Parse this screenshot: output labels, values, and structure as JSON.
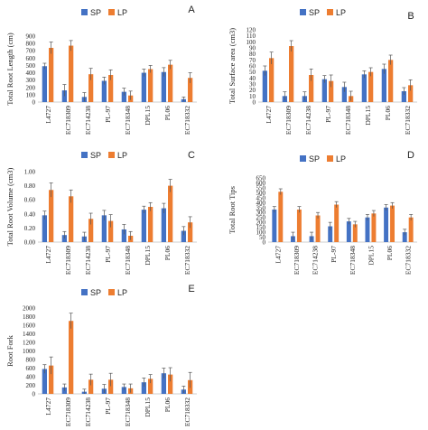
{
  "colors": {
    "SP": "#4472C4",
    "LP": "#ED7D31",
    "axis": "#BFBFBF",
    "error": "#555555"
  },
  "chart_data": [
    {
      "type": "bar",
      "panel": "A",
      "ylabel": "Total Root Length (cm)",
      "ylim": [
        0,
        900
      ],
      "yticks": [
        "0",
        "100",
        "200",
        "300",
        "400",
        "500",
        "600",
        "700",
        "800",
        "900"
      ],
      "yticks_values": [
        0,
        100,
        200,
        300,
        400,
        500,
        600,
        700,
        800,
        900
      ],
      "categories": [
        "L4727",
        "EC718309",
        "EC714238",
        "PL-97",
        "EC718348",
        "DPL15",
        "PL06",
        "EC718332"
      ],
      "series": [
        {
          "name": "SP",
          "values": [
            490,
            160,
            70,
            290,
            140,
            400,
            410,
            40
          ],
          "errors": [
            40,
            80,
            60,
            50,
            50,
            50,
            60,
            30
          ]
        },
        {
          "name": "LP",
          "values": [
            740,
            770,
            380,
            370,
            90,
            450,
            510,
            330
          ],
          "errors": [
            80,
            70,
            80,
            70,
            60,
            50,
            60,
            70
          ]
        }
      ],
      "legend": [
        "SP",
        "LP"
      ],
      "legend_position": "top"
    },
    {
      "type": "bar",
      "panel": "B",
      "ylabel": "Total Surface area (cm3)",
      "ylim": [
        0,
        120
      ],
      "yticks": [
        "0",
        "10",
        "20",
        "30",
        "40",
        "50",
        "60",
        "70",
        "80",
        "90",
        "100",
        "110",
        "120"
      ],
      "yticks_values": [
        0,
        10,
        20,
        30,
        40,
        50,
        60,
        70,
        80,
        90,
        100,
        110,
        120
      ],
      "categories": [
        "L4727",
        "EC718309",
        "EC714238",
        "PL-97",
        "EC718348",
        "DPL15",
        "PL06",
        "EC718332"
      ],
      "series": [
        {
          "name": "SP",
          "values": [
            52,
            10,
            10,
            38,
            25,
            46,
            55,
            18
          ],
          "errors": [
            8,
            7,
            7,
            6,
            8,
            6,
            8,
            6
          ]
        },
        {
          "name": "LP",
          "values": [
            73,
            93,
            45,
            35,
            10,
            50,
            70,
            28
          ],
          "errors": [
            10,
            9,
            10,
            10,
            8,
            7,
            8,
            9
          ]
        }
      ],
      "legend": [
        "SP",
        "LP"
      ],
      "legend_position": "top"
    },
    {
      "type": "bar",
      "panel": "C",
      "ylabel": "Total Root Volume (cm3)",
      "ylim": [
        0,
        1.0
      ],
      "yticks": [
        "0.00",
        "0.20",
        "0.40",
        "0.60",
        "0.80",
        "1.00"
      ],
      "yticks_values": [
        0,
        0.2,
        0.4,
        0.6,
        0.8,
        1.0
      ],
      "categories": [
        "L4727",
        "EC718309",
        "EC714238",
        "PL-97",
        "EC718348",
        "DPL15",
        "PL06",
        "EC718332"
      ],
      "series": [
        {
          "name": "SP",
          "values": [
            0.38,
            0.1,
            0.08,
            0.38,
            0.18,
            0.46,
            0.48,
            0.16
          ],
          "errors": [
            0.06,
            0.05,
            0.06,
            0.07,
            0.07,
            0.05,
            0.07,
            0.06
          ]
        },
        {
          "name": "LP",
          "values": [
            0.74,
            0.65,
            0.33,
            0.3,
            0.09,
            0.5,
            0.8,
            0.28
          ],
          "errors": [
            0.1,
            0.09,
            0.08,
            0.09,
            0.06,
            0.06,
            0.09,
            0.08
          ]
        }
      ],
      "legend": [
        "SP",
        "LP"
      ],
      "legend_position": "top"
    },
    {
      "type": "bar",
      "panel": "D",
      "ylabel": "Total Root Tips",
      "ylim": [
        0,
        650
      ],
      "yticks": [
        "0",
        "50",
        "100",
        "150",
        "200",
        "250",
        "300",
        "350",
        "400",
        "450",
        "500",
        "550",
        "600",
        "650"
      ],
      "yticks_values": [
        0,
        50,
        100,
        150,
        200,
        250,
        300,
        350,
        400,
        450,
        500,
        550,
        600,
        650
      ],
      "categories": [
        "L4727",
        "EC718309",
        "EC714238",
        "PL-97",
        "EC718348",
        "DPL15",
        "PL06",
        "EC718332"
      ],
      "series": [
        {
          "name": "SP",
          "values": [
            330,
            60,
            60,
            160,
            210,
            250,
            350,
            100
          ],
          "errors": [
            30,
            40,
            40,
            40,
            30,
            30,
            30,
            30
          ]
        },
        {
          "name": "LP",
          "values": [
            510,
            330,
            270,
            380,
            180,
            290,
            370,
            250
          ],
          "errors": [
            30,
            30,
            30,
            30,
            30,
            30,
            30,
            30
          ]
        }
      ],
      "legend": [
        "SP",
        "LP"
      ],
      "legend_position": "top"
    },
    {
      "type": "bar",
      "panel": "E",
      "ylabel": "Root Fork",
      "ylim": [
        0,
        2000
      ],
      "yticks": [
        "0",
        "200",
        "400",
        "600",
        "800",
        "1000",
        "1200",
        "1400",
        "1600",
        "1800",
        "2000"
      ],
      "yticks_values": [
        0,
        200,
        400,
        600,
        800,
        1000,
        1200,
        1400,
        1600,
        1800,
        2000
      ],
      "categories": [
        "L4727",
        "EC718309",
        "EC714238",
        "PL-97",
        "EC718348",
        "DPL15",
        "PL06",
        "EC718332"
      ],
      "series": [
        {
          "name": "SP",
          "values": [
            580,
            150,
            50,
            120,
            160,
            270,
            480,
            100
          ],
          "errors": [
            100,
            80,
            60,
            100,
            70,
            100,
            120,
            80
          ]
        },
        {
          "name": "LP",
          "values": [
            660,
            1700,
            330,
            330,
            130,
            350,
            450,
            320
          ],
          "errors": [
            200,
            180,
            130,
            150,
            100,
            100,
            160,
            180
          ]
        }
      ],
      "legend": [
        "SP",
        "LP"
      ],
      "legend_position": "top"
    }
  ]
}
